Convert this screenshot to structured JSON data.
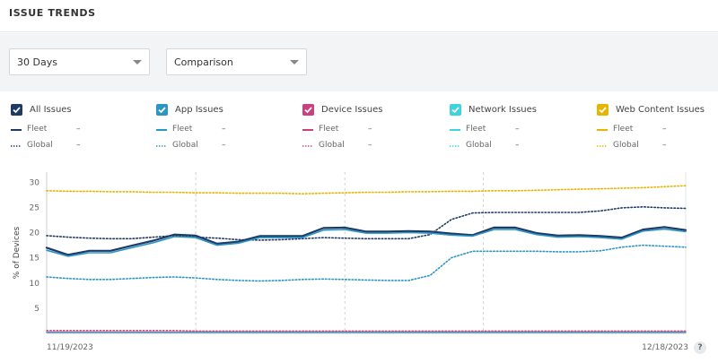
{
  "header": {
    "title": "ISSUE TRENDS"
  },
  "filters": {
    "period": "30 Days",
    "comparison": "Comparison"
  },
  "legend": [
    {
      "label": "All Issues",
      "color": "#1f3a64",
      "fleet_label": "Fleet",
      "fleet_value": "–",
      "global_label": "Global",
      "global_value": "–"
    },
    {
      "label": "App Issues",
      "color": "#2b95c6",
      "fleet_label": "Fleet",
      "fleet_value": "–",
      "global_label": "Global",
      "global_value": "–"
    },
    {
      "label": "Device Issues",
      "color": "#c9427f",
      "fleet_label": "Fleet",
      "fleet_value": "–",
      "global_label": "Global",
      "global_value": "–"
    },
    {
      "label": "Network Issues",
      "color": "#3fd3dd",
      "fleet_label": "Fleet",
      "fleet_value": "–",
      "global_label": "Global",
      "global_value": "–"
    },
    {
      "label": "Web Content Issues",
      "color": "#e8b400",
      "fleet_label": "Fleet",
      "fleet_value": "–",
      "global_label": "Global",
      "global_value": "–"
    }
  ],
  "chart_data": {
    "type": "line",
    "ylabel": "% of Devices",
    "ylim": [
      0,
      32
    ],
    "yticks": [
      5,
      10,
      15,
      20,
      25,
      30
    ],
    "x_start_label": "11/19/2023",
    "x_end_label": "12/18/2023",
    "series": [
      {
        "key": "all-fleet",
        "color": "#1f3a64",
        "style": "solid",
        "width": 2.2,
        "values": [
          17.0,
          15.6,
          16.4,
          16.4,
          17.4,
          18.4,
          19.6,
          19.4,
          17.8,
          18.2,
          19.3,
          19.3,
          19.3,
          20.9,
          21.0,
          20.2,
          20.2,
          20.3,
          20.2,
          19.8,
          19.5,
          21.0,
          21.0,
          19.9,
          19.4,
          19.5,
          19.3,
          19.0,
          20.6,
          21.1,
          20.5
        ]
      },
      {
        "key": "all-global",
        "color": "#1f3a64",
        "style": "dotted",
        "width": 1.6,
        "values": [
          19.4,
          19.1,
          18.9,
          18.8,
          18.8,
          19.1,
          19.4,
          19.1,
          18.9,
          18.6,
          18.5,
          18.6,
          18.8,
          19.0,
          18.9,
          18.8,
          18.8,
          18.8,
          19.6,
          22.6,
          23.9,
          24.0,
          24.0,
          24.0,
          24.0,
          24.0,
          24.3,
          24.9,
          25.1,
          24.9,
          24.8
        ]
      },
      {
        "key": "app-fleet",
        "color": "#2b95c6",
        "style": "solid",
        "width": 1.6,
        "values": [
          16.5,
          15.3,
          16.0,
          16.0,
          17.0,
          18.0,
          19.2,
          19.0,
          17.5,
          17.9,
          19.0,
          19.0,
          19.0,
          20.5,
          20.6,
          19.9,
          19.9,
          20.0,
          19.9,
          19.5,
          19.3,
          20.6,
          20.6,
          19.6,
          19.1,
          19.2,
          19.0,
          18.7,
          20.3,
          20.7,
          20.2
        ]
      },
      {
        "key": "app-global",
        "color": "#2b95c6",
        "style": "dotted",
        "width": 1.6,
        "values": [
          11.2,
          10.9,
          10.7,
          10.7,
          10.9,
          11.1,
          11.2,
          11.0,
          10.7,
          10.5,
          10.4,
          10.5,
          10.7,
          10.8,
          10.7,
          10.6,
          10.5,
          10.5,
          11.5,
          15.0,
          16.3,
          16.3,
          16.3,
          16.3,
          16.2,
          16.2,
          16.4,
          17.1,
          17.5,
          17.3,
          17.1
        ]
      },
      {
        "key": "device-fleet",
        "color": "#c9427f",
        "style": "solid",
        "width": 1.4,
        "values": [
          0.3,
          0.3,
          0.3,
          0.3,
          0.3,
          0.3,
          0.3,
          0.3,
          0.3,
          0.3,
          0.3,
          0.3,
          0.3,
          0.3,
          0.3,
          0.3,
          0.3,
          0.3,
          0.3,
          0.3,
          0.3,
          0.3,
          0.3,
          0.3,
          0.3,
          0.3,
          0.3,
          0.3,
          0.3,
          0.3,
          0.3
        ]
      },
      {
        "key": "device-global",
        "color": "#c9427f",
        "style": "dotted",
        "width": 1.2,
        "values": [
          0.6,
          0.6,
          0.6,
          0.6,
          0.6,
          0.6,
          0.6,
          0.5,
          0.5,
          0.5,
          0.5,
          0.5,
          0.5,
          0.5,
          0.5,
          0.5,
          0.5,
          0.5,
          0.5,
          0.5,
          0.5,
          0.5,
          0.5,
          0.5,
          0.5,
          0.5,
          0.5,
          0.5,
          0.5,
          0.5,
          0.5
        ]
      },
      {
        "key": "network-fleet",
        "color": "#3fd3dd",
        "style": "solid",
        "width": 1.2,
        "values": [
          0.1,
          0.1,
          0.1,
          0.1,
          0.1,
          0.1,
          0.1,
          0.1,
          0.1,
          0.1,
          0.1,
          0.1,
          0.1,
          0.1,
          0.1,
          0.1,
          0.1,
          0.1,
          0.1,
          0.1,
          0.1,
          0.1,
          0.1,
          0.1,
          0.1,
          0.1,
          0.1,
          0.1,
          0.1,
          0.1,
          0.1
        ]
      },
      {
        "key": "web-global",
        "color": "#e8b400",
        "style": "dotted",
        "width": 1.6,
        "values": [
          28.3,
          28.2,
          28.2,
          28.1,
          28.1,
          28.0,
          28.0,
          27.9,
          27.9,
          27.8,
          27.8,
          27.8,
          27.7,
          27.8,
          27.9,
          28.0,
          28.0,
          28.1,
          28.1,
          28.2,
          28.2,
          28.3,
          28.3,
          28.4,
          28.5,
          28.6,
          28.7,
          28.8,
          28.9,
          29.1,
          29.3
        ]
      }
    ]
  }
}
